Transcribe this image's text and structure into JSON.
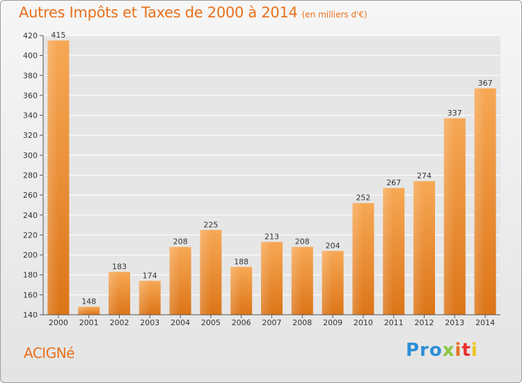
{
  "title": "Autres Impôts et Taxes de 2000 à 2014",
  "unit_note": "(en milliers d'€)",
  "commune": "ACIGNé",
  "logo": {
    "p1": "Pro",
    "p2": "x",
    "p3": "i",
    "p4": "t",
    "p5": "i"
  },
  "colors": {
    "bar_light": "#f5a04a",
    "bar_dark": "#e07a1a",
    "title": "#e8701c",
    "grid": "#ffffff"
  },
  "chart_data": {
    "type": "bar",
    "categories": [
      "2000",
      "2001",
      "2002",
      "2003",
      "2004",
      "2005",
      "2006",
      "2007",
      "2008",
      "2009",
      "2010",
      "2011",
      "2012",
      "2013",
      "2014"
    ],
    "values": [
      415,
      148,
      183,
      174,
      208,
      225,
      188,
      213,
      208,
      204,
      252,
      267,
      274,
      337,
      367
    ],
    "ylim": [
      140,
      420
    ],
    "yticks": [
      140,
      160,
      180,
      200,
      220,
      240,
      260,
      280,
      300,
      320,
      340,
      360,
      380,
      400,
      420
    ],
    "grid": true,
    "data_labels": true
  }
}
